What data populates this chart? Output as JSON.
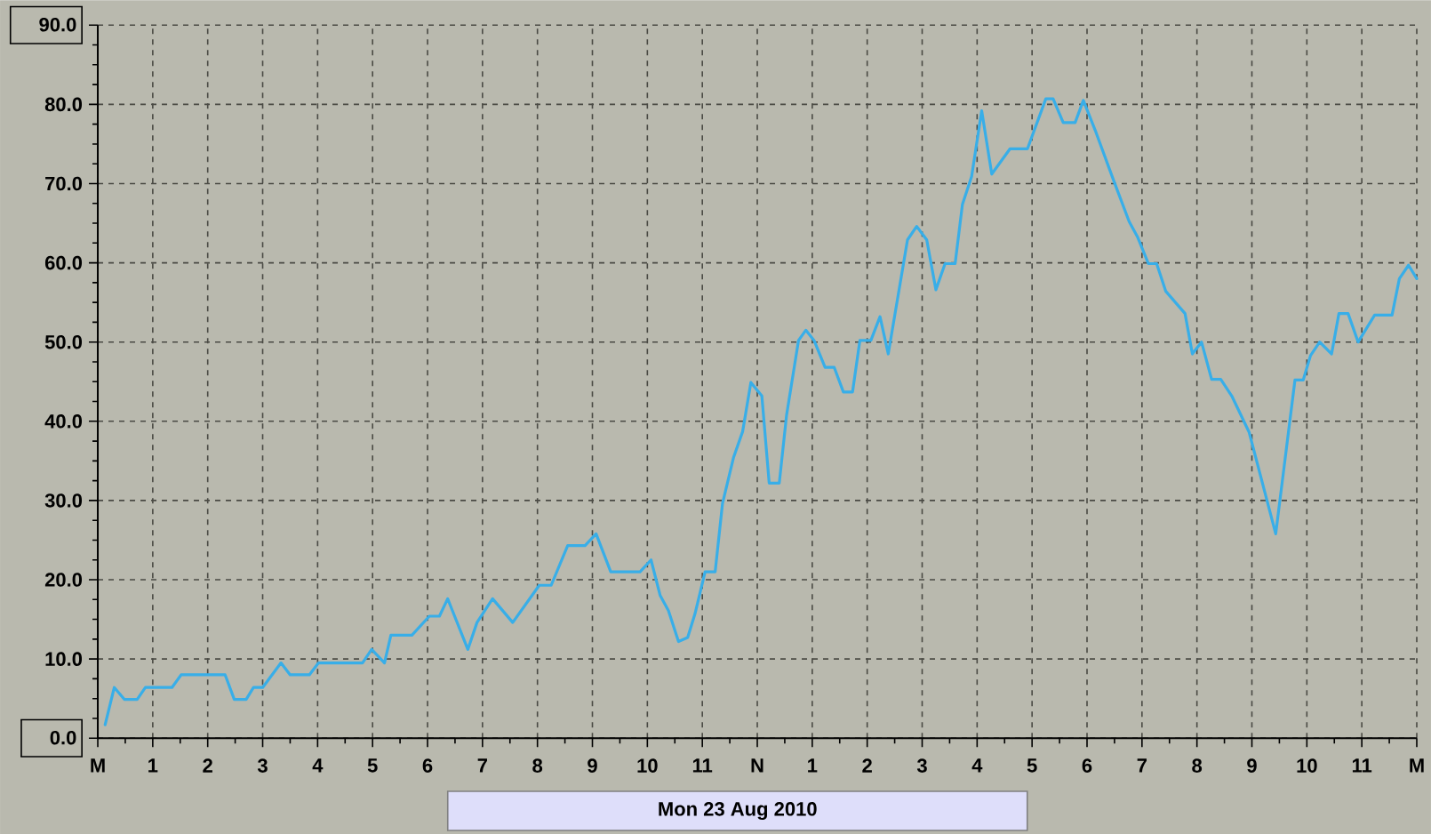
{
  "chart_data": {
    "type": "line",
    "xlabel": "Mon 23 Aug 2010",
    "x": [
      "2010-08-23T00:08",
      "2010-08-23T00:18",
      "2010-08-23T00:29",
      "2010-08-23T00:43",
      "2010-08-23T00:52",
      "2010-08-23T01:21",
      "2010-08-23T01:31",
      "2010-08-23T02:19",
      "2010-08-23T02:29",
      "2010-08-23T02:42",
      "2010-08-23T02:50",
      "2010-08-23T03:00",
      "2010-08-23T03:20",
      "2010-08-23T03:30",
      "2010-08-23T03:51",
      "2010-08-23T04:01",
      "2010-08-23T04:49",
      "2010-08-23T04:59",
      "2010-08-23T05:13",
      "2010-08-23T05:20",
      "2010-08-23T05:43",
      "2010-08-23T06:02",
      "2010-08-23T06:13",
      "2010-08-23T06:22",
      "2010-08-23T06:44",
      "2010-08-23T06:54",
      "2010-08-23T07:11",
      "2010-08-23T07:33",
      "2010-08-23T08:02",
      "2010-08-23T08:15",
      "2010-08-23T08:33",
      "2010-08-23T08:52",
      "2010-08-23T09:04",
      "2010-08-23T09:20",
      "2010-08-23T09:52",
      "2010-08-23T10:04",
      "2010-08-23T10:14",
      "2010-08-23T10:23",
      "2010-08-23T10:34",
      "2010-08-23T10:44",
      "2010-08-23T10:52",
      "2010-08-23T11:03",
      "2010-08-23T11:14",
      "2010-08-23T11:22",
      "2010-08-23T11:34",
      "2010-08-23T11:44",
      "2010-08-23T11:53",
      "2010-08-23T12:05",
      "2010-08-23T12:13",
      "2010-08-23T12:24",
      "2010-08-23T12:32",
      "2010-08-23T12:45",
      "2010-08-23T12:53",
      "2010-08-23T13:02",
      "2010-08-23T13:14",
      "2010-08-23T13:24",
      "2010-08-23T13:34",
      "2010-08-23T13:44",
      "2010-08-23T13:52",
      "2010-08-23T14:04",
      "2010-08-23T14:14",
      "2010-08-23T14:23",
      "2010-08-23T14:44",
      "2010-08-23T14:54",
      "2010-08-23T15:05",
      "2010-08-23T15:15",
      "2010-08-23T15:25",
      "2010-08-23T15:36",
      "2010-08-23T15:44",
      "2010-08-23T15:54",
      "2010-08-23T16:05",
      "2010-08-23T16:16",
      "2010-08-23T16:36",
      "2010-08-23T16:55",
      "2010-08-23T17:15",
      "2010-08-23T17:23",
      "2010-08-23T17:34",
      "2010-08-23T17:47",
      "2010-08-23T17:56",
      "2010-08-23T18:10",
      "2010-08-23T18:29",
      "2010-08-23T18:46",
      "2010-08-23T18:55",
      "2010-08-23T19:07",
      "2010-08-23T19:16",
      "2010-08-23T19:26",
      "2010-08-23T19:47",
      "2010-08-23T19:55",
      "2010-08-23T20:05",
      "2010-08-23T20:16",
      "2010-08-23T20:26",
      "2010-08-23T20:38",
      "2010-08-23T20:57",
      "2010-08-23T21:26",
      "2010-08-23T21:35",
      "2010-08-23T21:47",
      "2010-08-23T21:56",
      "2010-08-23T22:04",
      "2010-08-23T22:14",
      "2010-08-23T22:27",
      "2010-08-23T22:35",
      "2010-08-23T22:45",
      "2010-08-23T22:56",
      "2010-08-23T23:14",
      "2010-08-23T23:33",
      "2010-08-23T23:41",
      "2010-08-23T23:51",
      "2010-08-24T00:00"
    ],
    "series": [
      {
        "color": "#38aee8",
        "values": [
          1.7,
          6.4,
          4.9,
          4.9,
          6.4,
          6.4,
          8.0,
          8.0,
          4.9,
          4.9,
          6.4,
          6.4,
          9.5,
          8.0,
          8.0,
          9.5,
          9.5,
          11.2,
          9.5,
          13.0,
          13.0,
          15.4,
          15.4,
          17.6,
          11.2,
          14.6,
          17.6,
          14.6,
          19.3,
          19.3,
          24.3,
          24.3,
          25.8,
          21.0,
          21.0,
          22.5,
          18.0,
          16.1,
          12.2,
          12.7,
          15.7,
          21.0,
          21.0,
          29.6,
          35.4,
          38.7,
          44.9,
          43.2,
          32.2,
          32.2,
          40.8,
          50.2,
          51.5,
          50.2,
          46.8,
          46.8,
          43.7,
          43.7,
          50.2,
          50.2,
          53.2,
          48.5,
          62.9,
          64.6,
          62.9,
          56.6,
          59.9,
          59.9,
          67.4,
          70.9,
          79.2,
          71.2,
          74.4,
          74.4,
          80.7,
          80.7,
          77.7,
          77.7,
          80.5,
          76.4,
          70.4,
          65.2,
          63.3,
          59.9,
          59.9,
          56.4,
          53.6,
          48.5,
          50.0,
          45.3,
          45.3,
          43.2,
          38.6,
          25.8,
          34.1,
          45.2,
          45.2,
          48.3,
          50.0,
          48.5,
          53.6,
          53.6,
          50.0,
          53.4,
          53.4,
          58.0,
          59.7,
          58.0
        ]
      }
    ],
    "xlim": [
      "2010-08-23T00:00",
      "2010-08-24T00:00"
    ],
    "ylim": [
      0,
      90
    ],
    "xticks": [
      {
        "value": "2010-08-23T00:00",
        "label": "M"
      },
      {
        "value": "2010-08-23T01:00",
        "label": "1"
      },
      {
        "value": "2010-08-23T02:00",
        "label": "2"
      },
      {
        "value": "2010-08-23T03:00",
        "label": "3"
      },
      {
        "value": "2010-08-23T04:00",
        "label": "4"
      },
      {
        "value": "2010-08-23T05:00",
        "label": "5"
      },
      {
        "value": "2010-08-23T06:00",
        "label": "6"
      },
      {
        "value": "2010-08-23T07:00",
        "label": "7"
      },
      {
        "value": "2010-08-23T08:00",
        "label": "8"
      },
      {
        "value": "2010-08-23T09:00",
        "label": "9"
      },
      {
        "value": "2010-08-23T10:00",
        "label": "10"
      },
      {
        "value": "2010-08-23T11:00",
        "label": "11"
      },
      {
        "value": "2010-08-23T12:00",
        "label": "N"
      },
      {
        "value": "2010-08-23T13:00",
        "label": "1"
      },
      {
        "value": "2010-08-23T14:00",
        "label": "2"
      },
      {
        "value": "2010-08-23T15:00",
        "label": "3"
      },
      {
        "value": "2010-08-23T16:00",
        "label": "4"
      },
      {
        "value": "2010-08-23T17:00",
        "label": "5"
      },
      {
        "value": "2010-08-23T18:00",
        "label": "6"
      },
      {
        "value": "2010-08-23T19:00",
        "label": "7"
      },
      {
        "value": "2010-08-23T20:00",
        "label": "8"
      },
      {
        "value": "2010-08-23T21:00",
        "label": "9"
      },
      {
        "value": "2010-08-23T22:00",
        "label": "10"
      },
      {
        "value": "2010-08-23T23:00",
        "label": "11"
      },
      {
        "value": "2010-08-24T00:00",
        "label": "M"
      }
    ],
    "yticks": [
      {
        "value": 0,
        "label": "0.0"
      },
      {
        "value": 10,
        "label": "10.0"
      },
      {
        "value": 20,
        "label": "20.0"
      },
      {
        "value": 30,
        "label": "30.0"
      },
      {
        "value": 40,
        "label": "40.0"
      },
      {
        "value": 50,
        "label": "50.0"
      },
      {
        "value": 60,
        "label": "60.0"
      },
      {
        "value": 70,
        "label": "70.0"
      },
      {
        "value": 80,
        "label": "80.0"
      },
      {
        "value": 90,
        "label": "90.0"
      }
    ],
    "grid": true,
    "marker": "none"
  }
}
